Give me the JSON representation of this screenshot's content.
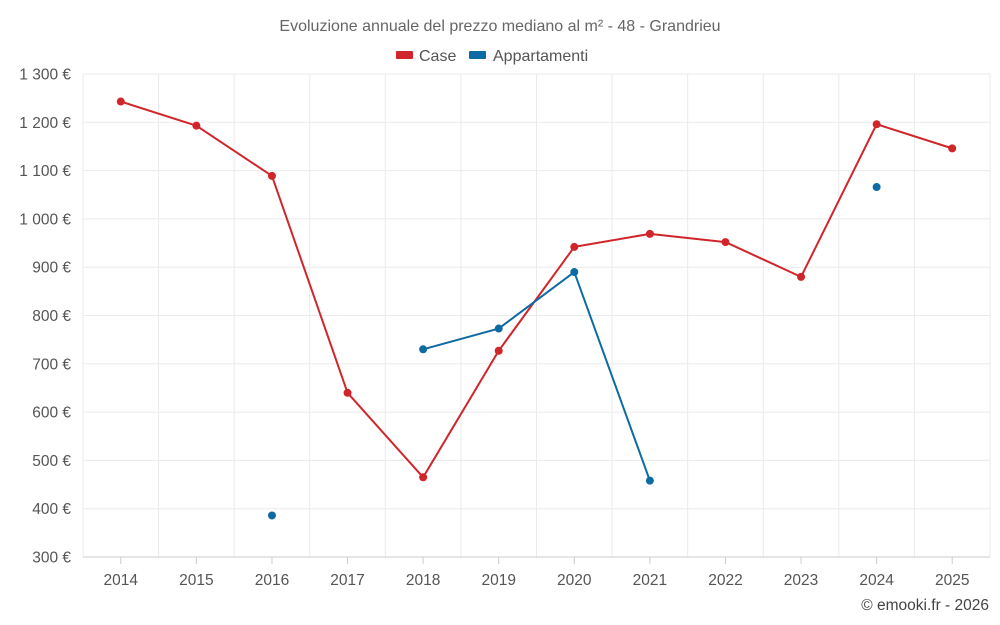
{
  "chart_data": {
    "type": "line",
    "title": "Evoluzione annuale del prezzo mediano al m² - 48 - Grandrieu",
    "categories": [
      "2014",
      "2015",
      "2016",
      "2017",
      "2018",
      "2019",
      "2020",
      "2021",
      "2022",
      "2023",
      "2024",
      "2025"
    ],
    "series": [
      {
        "name": "Case",
        "color": "#d0262b",
        "values": [
          1243,
          1193,
          1089,
          640,
          465,
          727,
          942,
          969,
          952,
          880,
          1196,
          1146
        ]
      },
      {
        "name": "Appartamenti",
        "color": "#0e6aa3",
        "values": [
          null,
          null,
          386,
          null,
          730,
          773,
          890,
          458,
          null,
          null,
          1066,
          null
        ]
      }
    ],
    "ylim": [
      300,
      1300
    ],
    "yticks": [
      300,
      400,
      500,
      600,
      700,
      800,
      900,
      1000,
      1100,
      1200,
      1300
    ],
    "ytick_labels": [
      "300 €",
      "400 €",
      "500 €",
      "600 €",
      "700 €",
      "800 €",
      "900 €",
      "1 000 €",
      "1 100 €",
      "1 200 €",
      "1 300 €"
    ],
    "xlabel": "",
    "ylabel": "",
    "grid": true,
    "legend": "top-center"
  },
  "credit": "© emooki.fr - 2026"
}
